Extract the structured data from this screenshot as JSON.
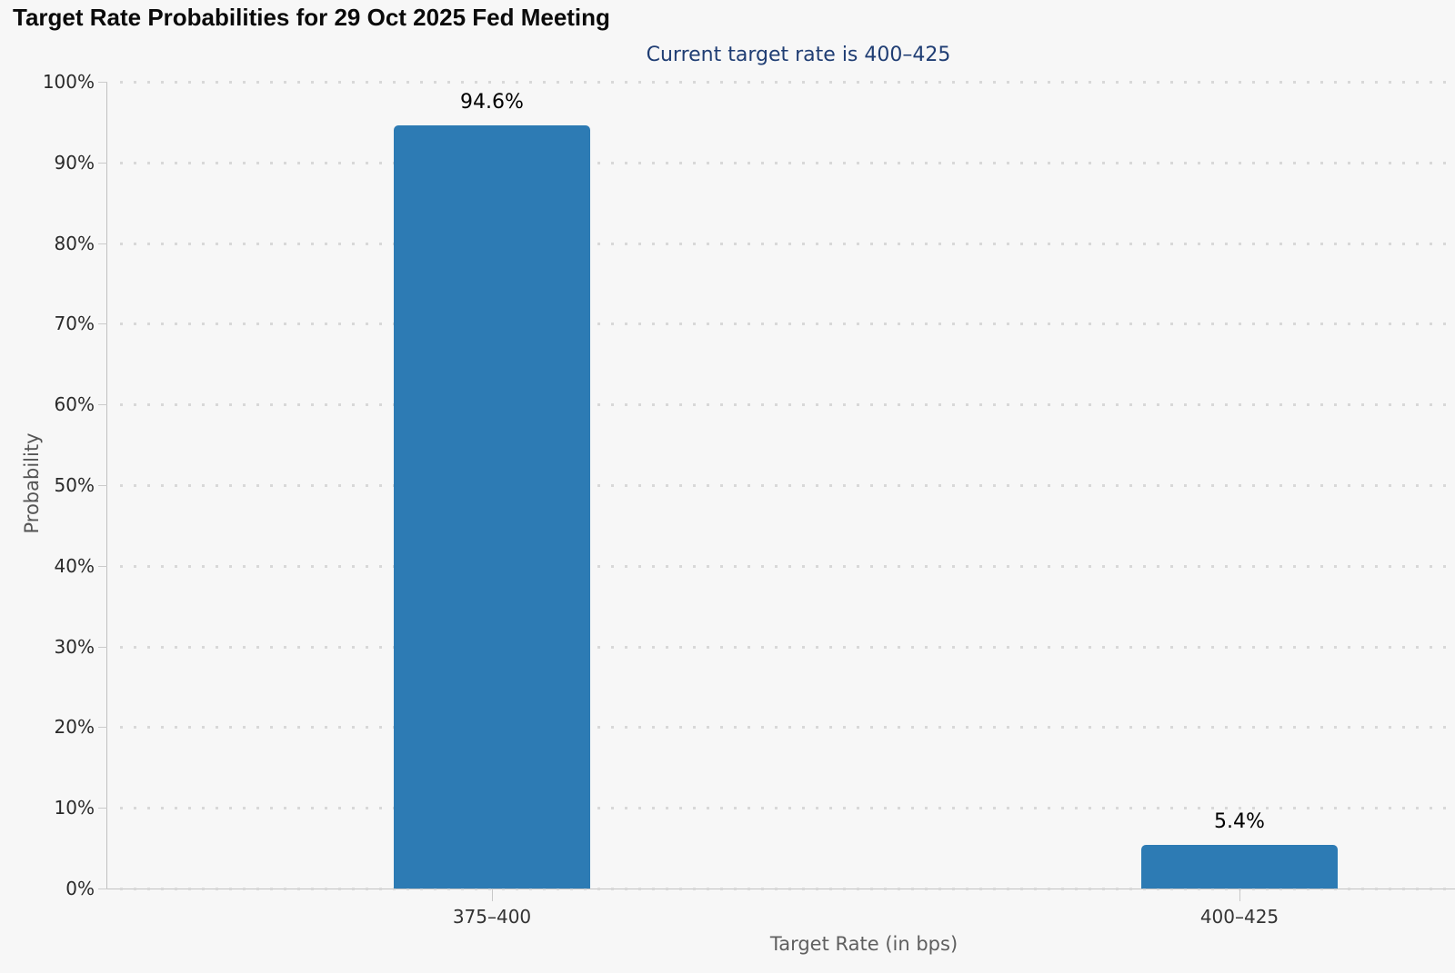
{
  "header": {
    "title": "Target Rate Probabilities for 29 Oct 2025 Fed Meeting",
    "subtitle": "Current target rate is 400–425"
  },
  "colors": {
    "background": "#f7f7f7",
    "bar": "#2d7bb4",
    "subtitle_text": "#1f3d73",
    "grid_dots": "#d8d8d8",
    "axis_line": "#c0c0c0"
  },
  "chart_data": {
    "type": "bar",
    "title": "Target Rate Probabilities for 29 Oct 2025 Fed Meeting",
    "subtitle": "Current target rate is 400–425",
    "categories": [
      "375–400",
      "400–425"
    ],
    "values": [
      94.6,
      5.4
    ],
    "bar_labels": [
      "94.6%",
      "5.4%"
    ],
    "xlabel": "Target Rate (in bps)",
    "ylabel": "Probability",
    "ylim": [
      0,
      100
    ],
    "ytick_step": 10,
    "ytick_labels": [
      "0%",
      "10%",
      "20%",
      "30%",
      "40%",
      "50%",
      "60%",
      "70%",
      "80%",
      "90%",
      "100%"
    ],
    "grid": "horizontal-dotted",
    "legend_position": "none",
    "bar_color": "#2d7bb4"
  }
}
